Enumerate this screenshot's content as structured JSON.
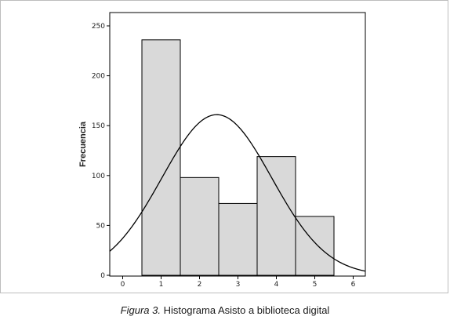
{
  "chart_data": {
    "type": "bar",
    "title": "",
    "xlabel": "",
    "ylabel": "Frecuencia",
    "xlim": [
      -0.3,
      6.3
    ],
    "ylim": [
      0,
      250
    ],
    "x_ticks": [
      0,
      1,
      2,
      3,
      4,
      5,
      6
    ],
    "y_ticks": [
      0,
      50,
      100,
      150,
      200,
      250
    ],
    "categories": [
      "1",
      "2",
      "3",
      "4",
      "5"
    ],
    "bins": [
      {
        "x0": 0.5,
        "x1": 1.5,
        "value": 236
      },
      {
        "x0": 1.5,
        "x1": 2.5,
        "value": 98
      },
      {
        "x0": 2.5,
        "x1": 3.5,
        "value": 72
      },
      {
        "x0": 3.5,
        "x1": 4.5,
        "value": 119
      },
      {
        "x0": 4.5,
        "x1": 5.5,
        "value": 59
      }
    ],
    "normal_curve": {
      "mean": 2.45,
      "sd": 1.43,
      "peak": 161
    },
    "grid": false,
    "bar_color": "#d9d9d9",
    "edge_color": "#000000"
  },
  "caption": {
    "figure_label": "Figura 3.",
    "text": " Histograma Asisto a biblioteca digital"
  }
}
